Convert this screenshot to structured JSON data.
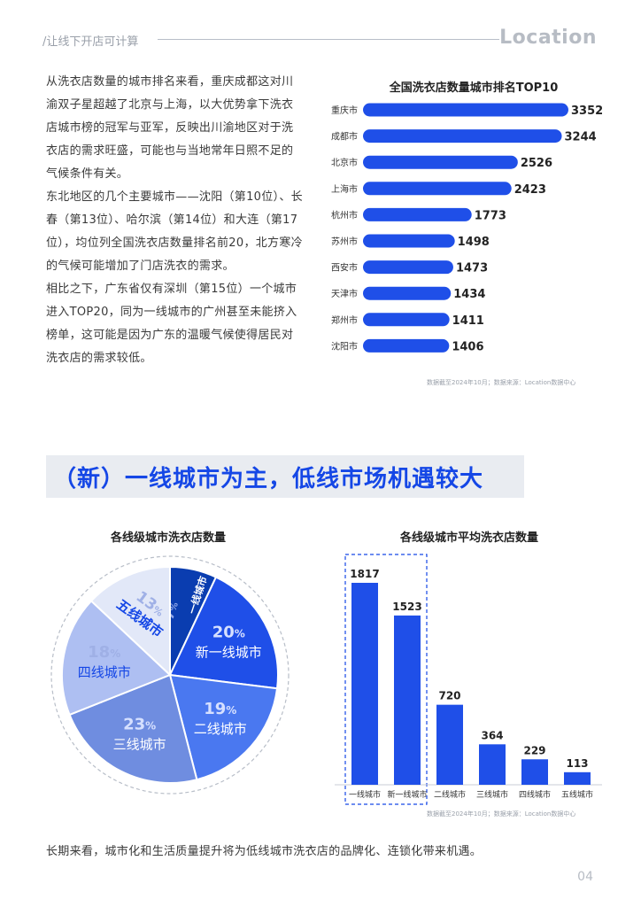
{
  "header": {
    "section": "/让线下开店可计算",
    "logo": "Location"
  },
  "intro": {
    "p1": "从洗衣店数量的城市排名来看，重庆成都这对川渝双子星超越了北京与上海，以大优势拿下洗衣店城市榜的冠军与亚军，反映出川渝地区对于洗衣店的需求旺盛，可能也与当地常年日照不足的气候条件有关。",
    "p2": "东北地区的几个主要城市——沈阳（第10位）、长春（第13位）、哈尔滨（第14位）和大连（第17位），均位列全国洗衣店数量排名前20，北方寒冷的气候可能增加了门店洗衣的需求。",
    "p3": "相比之下，广东省仅有深圳（第15位）一个城市进入TOP20，同为一线城市的广州甚至未能挤入榜单，这可能是因为广东的温暖气候使得居民对洗衣店的需求较低。"
  },
  "colors": {
    "accent": "#1547e6",
    "bar": "#1f4fe8",
    "banner_bg": "#e9ecf1",
    "muted": "#9aa0aa"
  },
  "chart_data": [
    {
      "type": "bar",
      "orientation": "horizontal",
      "title": "全国洗衣店数量城市排名TOP10",
      "categories": [
        "重庆市",
        "成都市",
        "北京市",
        "上海市",
        "杭州市",
        "苏州市",
        "西安市",
        "天津市",
        "郑州市",
        "沈阳市"
      ],
      "values": [
        3352,
        3244,
        2526,
        2423,
        1773,
        1498,
        1473,
        1434,
        1411,
        1406
      ],
      "source": "数据截至2024年10月；数据来源：Location数据中心"
    },
    {
      "type": "pie",
      "title": "各线级城市洗衣店数量",
      "value_suffix": "%",
      "slices": [
        {
          "label": "一线城市",
          "value": 7,
          "color": "#0a3db0"
        },
        {
          "label": "新一线城市",
          "value": 20,
          "color": "#1f4fe8"
        },
        {
          "label": "二线城市",
          "value": 19,
          "color": "#4a78f0"
        },
        {
          "label": "三线城市",
          "value": 23,
          "color": "#6f8de0"
        },
        {
          "label": "四线城市",
          "value": 18,
          "color": "#aebff2"
        },
        {
          "label": "五线城市",
          "value": 13,
          "color": "#e2e8f8"
        }
      ]
    },
    {
      "type": "bar",
      "orientation": "vertical",
      "title": "各线级城市平均洗衣店数量",
      "categories": [
        "一线城市",
        "新一线城市",
        "二线城市",
        "三线城市",
        "四线城市",
        "五线城市"
      ],
      "values": [
        1817,
        1523,
        720,
        364,
        229,
        113
      ],
      "highlight": [
        0,
        1
      ],
      "source": "数据截至2024年10月；数据来源：Location数据中心"
    }
  ],
  "banner": "（新）一线城市为主，低线市场机遇较大",
  "footnote": "长期来看，城市化和生活质量提升将为低线城市洗衣店的品牌化、连锁化带来机遇。",
  "page_number": "04"
}
